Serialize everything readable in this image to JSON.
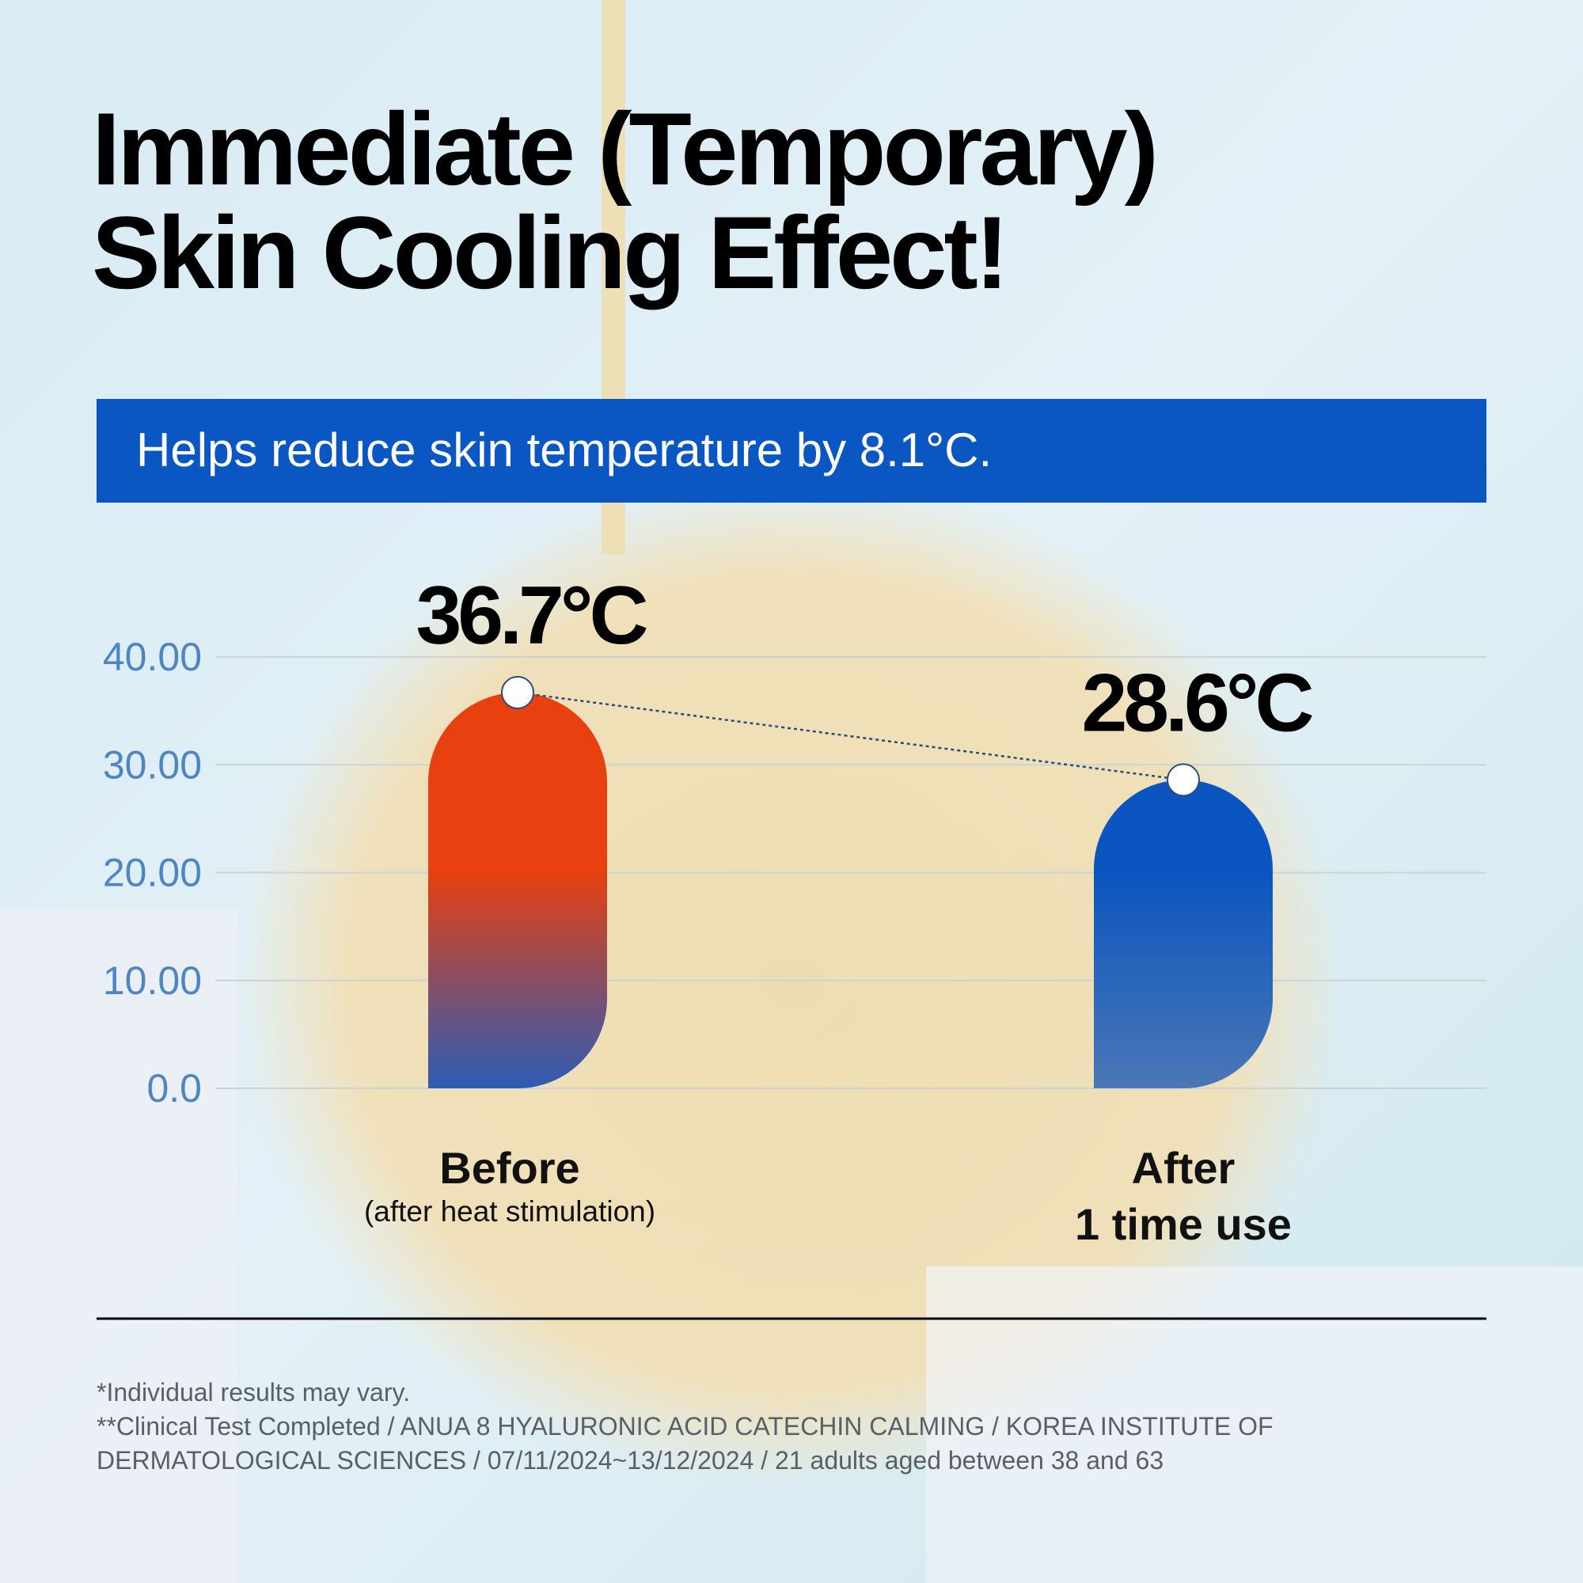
{
  "chart_data": {
    "type": "bar",
    "title": [
      "Immediate (Temporary)",
      "Skin Cooling Effect!"
    ],
    "subtitle": "Helps reduce skin temperature by 8.1°C.",
    "categories": [
      [
        "Before",
        "(after heat stimulation)"
      ],
      [
        "After",
        "1 time use"
      ]
    ],
    "values": [
      36.7,
      28.6
    ],
    "value_labels": [
      "36.7°C",
      "28.6°C"
    ],
    "colors": [
      [
        "#e8400f",
        "#2c5cb6"
      ],
      [
        "#0b55c0",
        "#4a76b6"
      ]
    ],
    "ylim": [
      0,
      40
    ],
    "yticks": [
      {
        "value": 0,
        "label": "0.0"
      },
      {
        "value": 10,
        "label": "10.00"
      },
      {
        "value": 20,
        "label": "20.00"
      },
      {
        "value": 30,
        "label": "30.00"
      },
      {
        "value": 40,
        "label": "40.00"
      }
    ],
    "grid": true,
    "connector": true
  },
  "footnotes": [
    "*Individual results may vary.",
    "**Clinical Test Completed / ANUA 8 HYALURONIC ACID CATECHIN CALMING / KOREA INSTITUTE OF DERMATOLOGICAL SCIENCES / 07/11/2024~13/12/2024 / 21 adults aged between 38 and 63"
  ]
}
